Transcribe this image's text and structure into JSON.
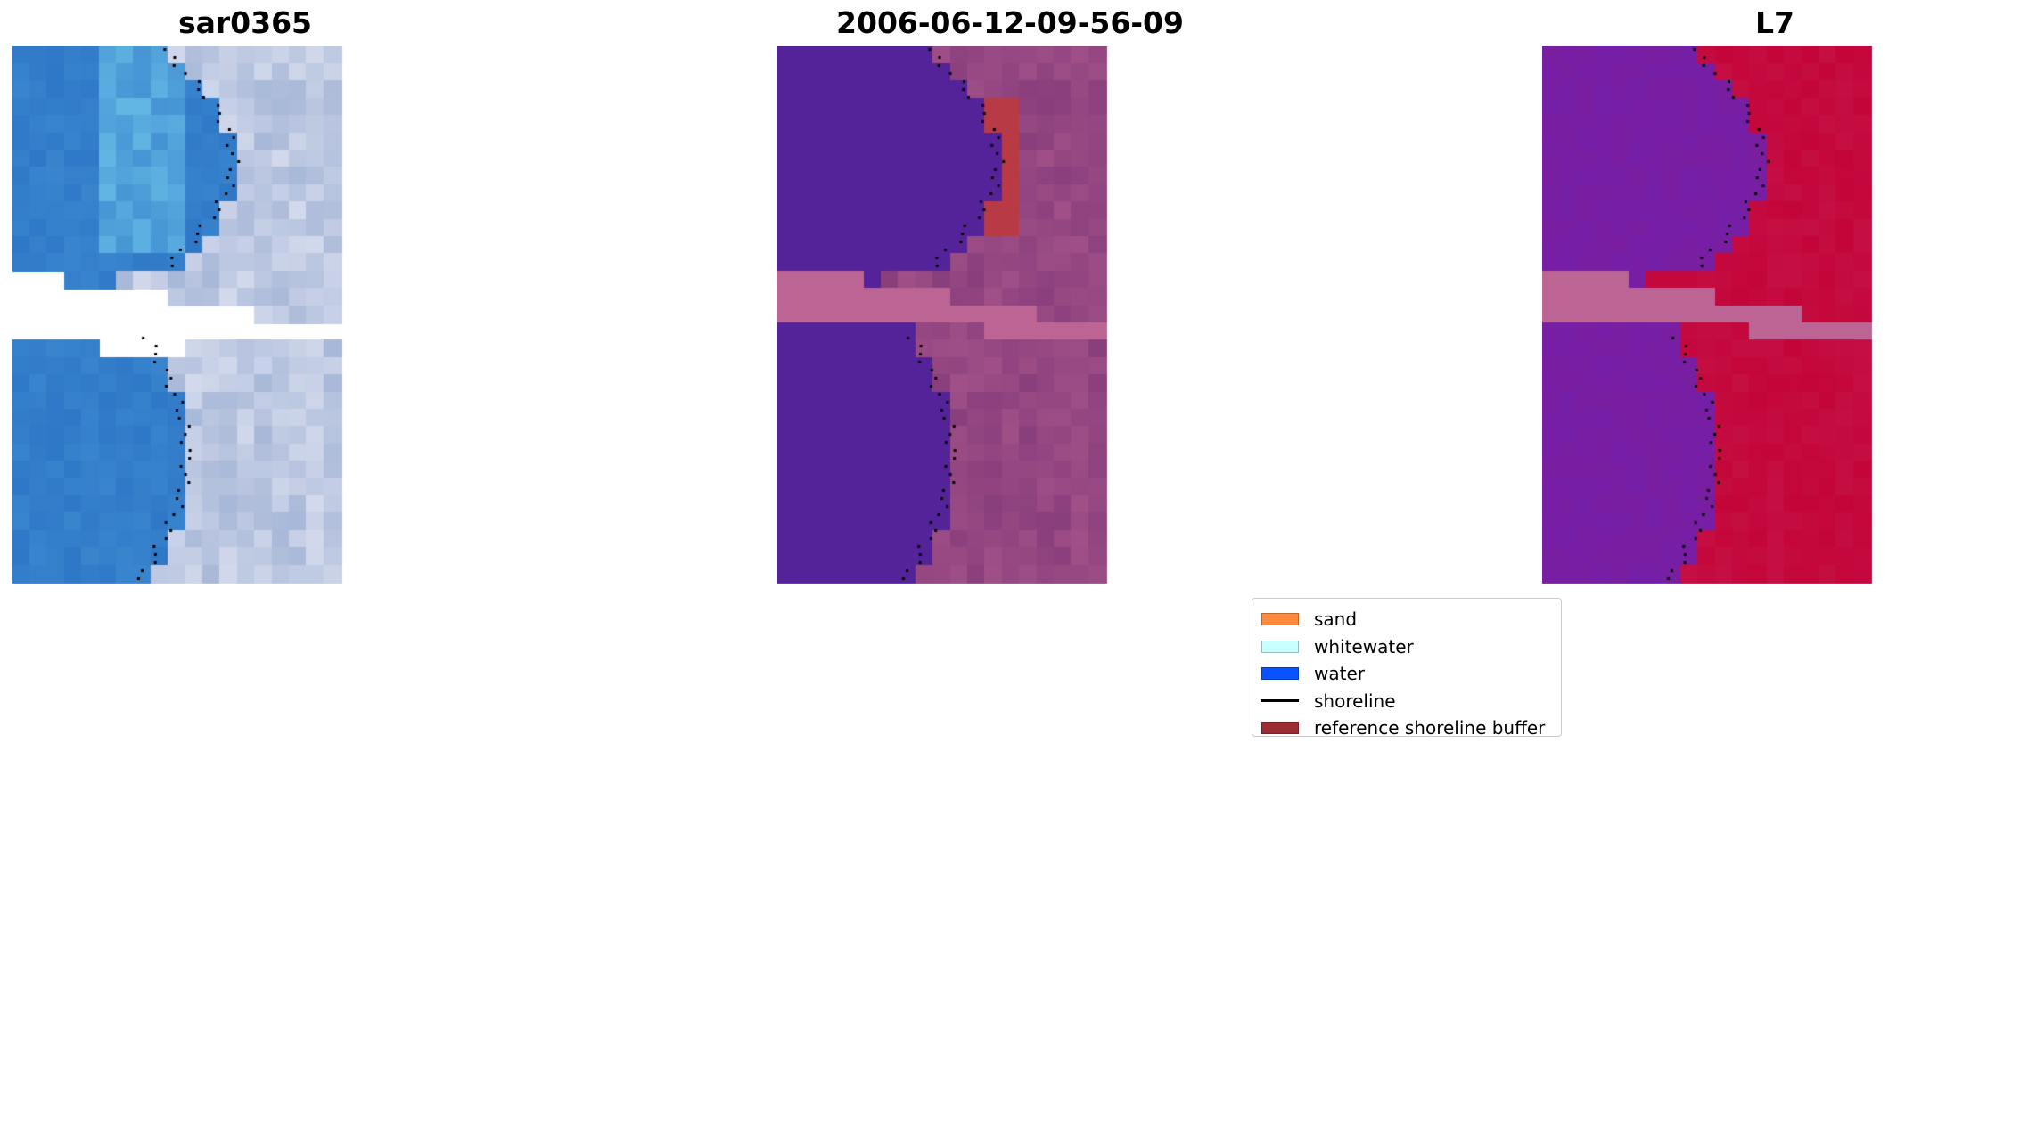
{
  "panels": [
    {
      "title": "sar0365"
    },
    {
      "title": "2006-06-12-09-56-09"
    },
    {
      "title": "L7"
    }
  ],
  "legend": {
    "items": [
      {
        "label": "sand",
        "color": "#ff8a3d",
        "kind": "patch"
      },
      {
        "label": "whitewater",
        "color": "#c8ffff",
        "kind": "patch"
      },
      {
        "label": "water",
        "color": "#0a52ff",
        "kind": "patch"
      },
      {
        "label": "shoreline",
        "color": "#000000",
        "kind": "line"
      },
      {
        "label": "reference shoreline buffer",
        "color": "#9b2d34",
        "kind": "patch"
      }
    ]
  },
  "colors": {
    "rgb_water": "#2f78c8",
    "rgb_land": "#a8b8d8",
    "classified_water": "#542399",
    "classified_land": "#8a3f7d",
    "buffer": "#b83a45",
    "nodata": "#bc6594",
    "mndwi_water": "#7a1fa0",
    "mndwi_land": "#c4053a"
  }
}
